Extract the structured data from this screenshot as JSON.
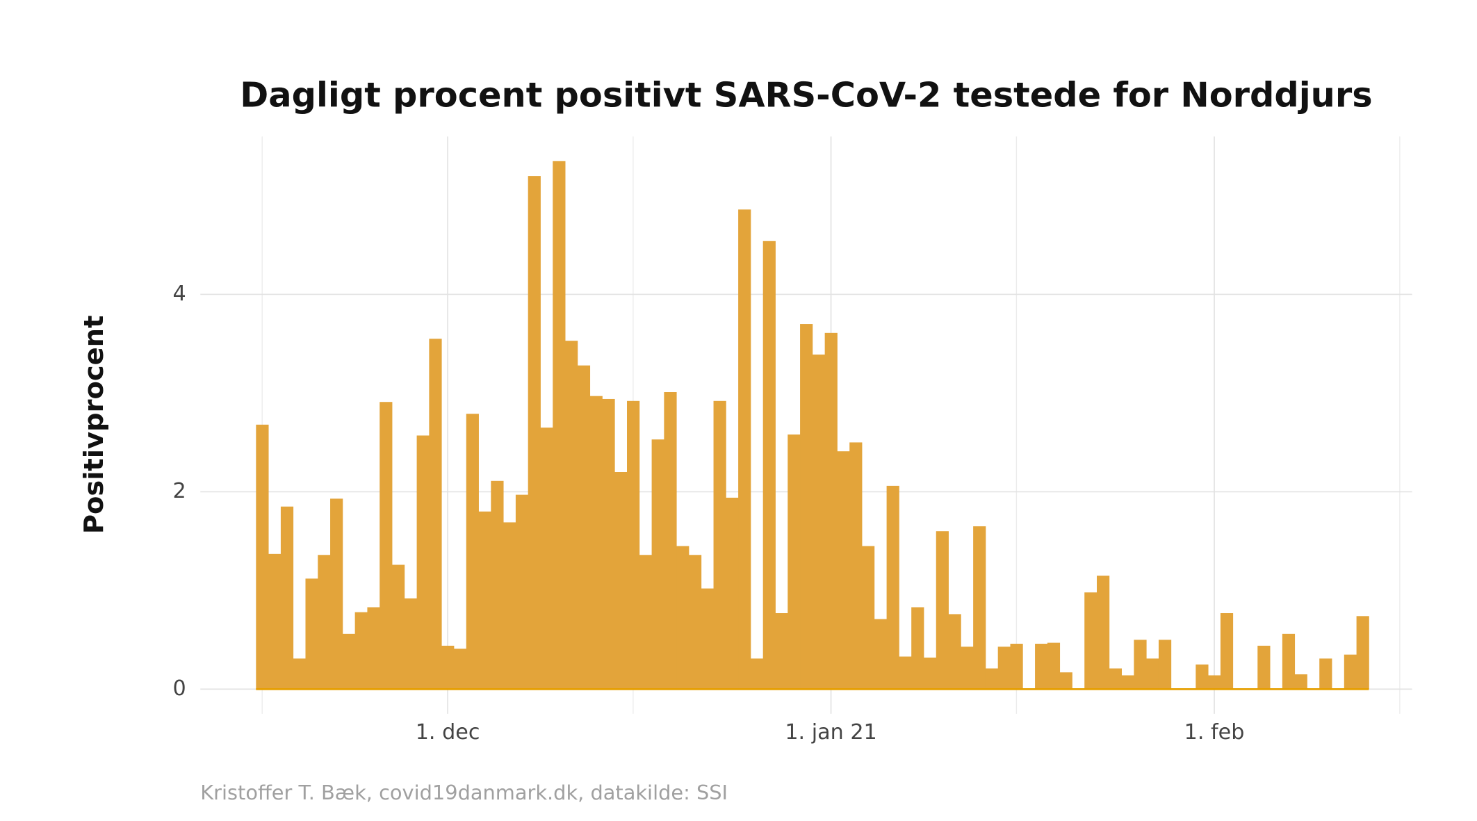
{
  "chart_data": {
    "type": "bar",
    "title": "Dagligt procent positivt SARS-CoV-2 testede for Norddjurs",
    "y_label": "Positivprocent",
    "caption": "Kristoffer T. Bæk, covid19danmark.dk, datakilde: SSI",
    "color": "#e3a43a",
    "baseline_color": "#e69f00",
    "grid": true,
    "x": [
      "2020-11-16",
      "2020-11-17",
      "2020-11-18",
      "2020-11-19",
      "2020-11-20",
      "2020-11-21",
      "2020-11-22",
      "2020-11-23",
      "2020-11-24",
      "2020-11-25",
      "2020-11-26",
      "2020-11-27",
      "2020-11-28",
      "2020-11-29",
      "2020-11-30",
      "2020-12-01",
      "2020-12-02",
      "2020-12-03",
      "2020-12-04",
      "2020-12-05",
      "2020-12-06",
      "2020-12-07",
      "2020-12-08",
      "2020-12-09",
      "2020-12-10",
      "2020-12-11",
      "2020-12-12",
      "2020-12-13",
      "2020-12-14",
      "2020-12-15",
      "2020-12-16",
      "2020-12-17",
      "2020-12-18",
      "2020-12-19",
      "2020-12-20",
      "2020-12-21",
      "2020-12-22",
      "2020-12-23",
      "2020-12-24",
      "2020-12-25",
      "2020-12-26",
      "2020-12-27",
      "2020-12-28",
      "2020-12-29",
      "2020-12-30",
      "2020-12-31",
      "2021-01-01",
      "2021-01-02",
      "2021-01-03",
      "2021-01-04",
      "2021-01-05",
      "2021-01-06",
      "2021-01-07",
      "2021-01-08",
      "2021-01-09",
      "2021-01-10",
      "2021-01-11",
      "2021-01-12",
      "2021-01-13",
      "2021-01-14",
      "2021-01-15",
      "2021-01-16",
      "2021-01-17",
      "2021-01-18",
      "2021-01-19",
      "2021-01-20",
      "2021-01-21",
      "2021-01-22",
      "2021-01-23",
      "2021-01-24",
      "2021-01-25",
      "2021-01-26",
      "2021-01-27",
      "2021-01-28",
      "2021-01-29",
      "2021-01-30",
      "2021-01-31",
      "2021-02-01",
      "2021-02-02",
      "2021-02-03",
      "2021-02-04",
      "2021-02-05",
      "2021-02-06",
      "2021-02-07",
      "2021-02-08",
      "2021-02-09",
      "2021-02-10",
      "2021-02-11",
      "2021-02-12",
      "2021-02-13"
    ],
    "values": [
      2.68,
      1.37,
      1.85,
      0.31,
      1.12,
      1.36,
      1.93,
      0.56,
      0.78,
      0.83,
      2.91,
      1.26,
      0.92,
      2.57,
      3.55,
      0.44,
      0.41,
      2.79,
      1.8,
      2.11,
      1.69,
      1.97,
      5.2,
      2.65,
      5.35,
      3.53,
      3.28,
      2.97,
      2.94,
      2.2,
      2.92,
      1.36,
      2.53,
      3.01,
      1.45,
      1.36,
      1.02,
      2.92,
      1.94,
      4.86,
      0.31,
      4.54,
      0.77,
      2.58,
      3.7,
      3.39,
      3.61,
      2.41,
      2.5,
      1.45,
      0.71,
      2.06,
      0.33,
      0.83,
      0.32,
      1.6,
      0.76,
      0.43,
      1.65,
      0.21,
      0.43,
      0.46,
      0,
      0.46,
      0.47,
      0.17,
      0,
      0.98,
      1.15,
      0.21,
      0.14,
      0.5,
      0.31,
      0.5,
      0,
      0,
      0.25,
      0.14,
      0.77,
      0,
      0,
      0.44,
      0,
      0.56,
      0.15,
      0,
      0.31,
      0,
      0.35,
      0.74
    ],
    "xlim": [
      "2020-11-11",
      "2021-02-17"
    ],
    "xticks": [
      {
        "value": "2020-12-01",
        "label": "1. dec"
      },
      {
        "value": "2021-01-01",
        "label": "1. jan 21"
      },
      {
        "value": "2021-02-01",
        "label": "1. feb"
      }
    ],
    "xminorticks": [
      "2020-11-16",
      "2020-12-16",
      "2021-01-16",
      "2021-02-16"
    ],
    "ylim": [
      -0.25,
      5.6
    ],
    "yticks": [
      0,
      2,
      4
    ]
  }
}
